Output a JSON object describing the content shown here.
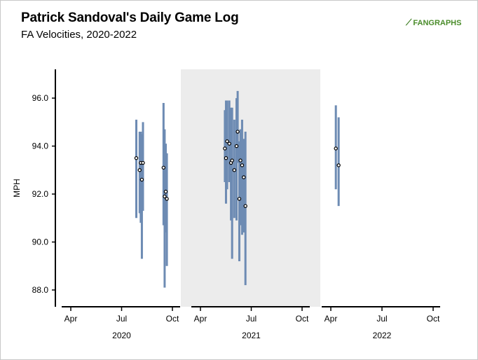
{
  "title": "Patrick Sandoval's Daily Game Log",
  "subtitle": "FA Velocities, 2020-2022",
  "logo_text": "FANGRAPHS",
  "chart_data": {
    "type": "scatter",
    "ylabel": "MPH",
    "ylim": [
      87.3,
      97.2
    ],
    "yticks": [
      "96.0",
      "94.0",
      "92.0",
      "90.0",
      "88.0"
    ],
    "highlighted_panel": "2021",
    "colors": {
      "range_bar": "#6d8bb3",
      "highlight_bg": "#ececec",
      "axis": "#000000"
    },
    "panels": [
      {
        "label": "2020",
        "month_ticks": [
          "Apr",
          "Jul",
          "Oct"
        ],
        "games": [
          {
            "date": "2020-07-28",
            "avg": 93.5,
            "min": 91.0,
            "max": 95.1
          },
          {
            "date": "2020-08-03",
            "avg": 93.0,
            "min": 91.2,
            "max": 94.6
          },
          {
            "date": "2020-08-05",
            "avg": 93.3,
            "min": 90.8,
            "max": 94.6
          },
          {
            "date": "2020-08-07",
            "avg": 92.6,
            "min": 89.3,
            "max": 94.5
          },
          {
            "date": "2020-08-09",
            "avg": 93.3,
            "min": 91.3,
            "max": 95.0
          },
          {
            "date": "2020-09-15",
            "avg": 93.1,
            "min": 90.7,
            "max": 95.8
          },
          {
            "date": "2020-09-17",
            "avg": 91.9,
            "min": 88.1,
            "max": 94.7
          },
          {
            "date": "2020-09-19",
            "avg": 92.1,
            "min": 90.4,
            "max": 94.1
          },
          {
            "date": "2020-09-21",
            "avg": 91.8,
            "min": 89.0,
            "max": 93.7
          }
        ]
      },
      {
        "label": "2021",
        "month_ticks": [
          "Apr",
          "Jul",
          "Oct"
        ],
        "games": [
          {
            "date": "2021-05-15",
            "avg": 93.9,
            "min": 92.5,
            "max": 95.5
          },
          {
            "date": "2021-05-17",
            "avg": 93.5,
            "min": 91.6,
            "max": 95.9
          },
          {
            "date": "2021-05-19",
            "avg": 94.2,
            "min": 92.2,
            "max": 95.9
          },
          {
            "date": "2021-05-23",
            "avg": 94.1,
            "min": 92.5,
            "max": 95.9
          },
          {
            "date": "2021-05-26",
            "avg": 93.3,
            "min": 90.9,
            "max": 95.6
          },
          {
            "date": "2021-05-28",
            "avg": 93.4,
            "min": 89.3,
            "max": 95.6
          },
          {
            "date": "2021-06-01",
            "avg": 93.0,
            "min": 91.0,
            "max": 95.1
          },
          {
            "date": "2021-06-05",
            "avg": 94.0,
            "min": 90.9,
            "max": 96.0
          },
          {
            "date": "2021-06-07",
            "avg": 94.6,
            "min": 93.3,
            "max": 96.3
          },
          {
            "date": "2021-06-10",
            "avg": 91.8,
            "min": 89.2,
            "max": 94.2
          },
          {
            "date": "2021-06-12",
            "avg": 93.4,
            "min": 90.7,
            "max": 94.7
          },
          {
            "date": "2021-06-15",
            "avg": 93.2,
            "min": 90.3,
            "max": 95.1
          },
          {
            "date": "2021-06-18",
            "avg": 92.7,
            "min": 90.4,
            "max": 94.3
          },
          {
            "date": "2021-06-21",
            "avg": 91.5,
            "min": 88.2,
            "max": 94.6
          }
        ]
      },
      {
        "label": "2022",
        "month_ticks": [
          "Apr",
          "Jul",
          "Oct"
        ],
        "games": [
          {
            "date": "2022-04-10",
            "avg": 93.9,
            "min": 92.2,
            "max": 95.7
          },
          {
            "date": "2022-04-15",
            "avg": 93.2,
            "min": 91.5,
            "max": 95.2
          }
        ]
      }
    ]
  }
}
